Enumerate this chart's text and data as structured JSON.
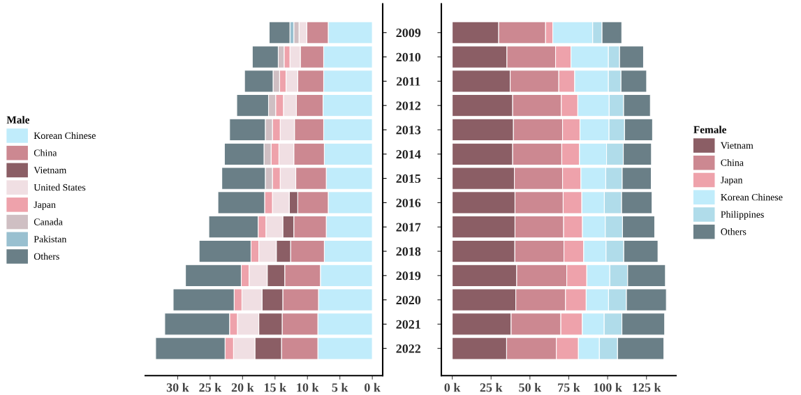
{
  "chart_data": [
    {
      "type": "bar",
      "orientation": "horizontal",
      "stacked": true,
      "legend": "left",
      "legend_title": "Male",
      "tick_labels": "x",
      "grid": false,
      "categories": [
        "2009",
        "2010",
        "2011",
        "2012",
        "2013",
        "2014",
        "2015",
        "2016",
        "2017",
        "2018",
        "2019",
        "2020",
        "2021",
        "2022"
      ],
      "xlim": [
        35,
        -1.6
      ],
      "xticks": [
        {
          "value": 0,
          "label": "0 k"
        },
        {
          "value": 5,
          "label": "5 k"
        },
        {
          "value": 10,
          "label": "10 k"
        },
        {
          "value": 15,
          "label": "15 k"
        },
        {
          "value": 20,
          "label": "20 k"
        },
        {
          "value": 25,
          "label": "25 k"
        },
        {
          "value": 30,
          "label": "30 k"
        }
      ],
      "series": [
        {
          "name": "Korean Chinese",
          "color": "#c0ecfb",
          "values": [
            6.8,
            7.5,
            7.5,
            7.6,
            7.5,
            7.4,
            7.1,
            6.8,
            7.1,
            7.4,
            8.0,
            8.3,
            8.4,
            8.4
          ]
        },
        {
          "name": "China",
          "color": "#cc8891",
          "values": [
            3.3,
            3.6,
            4.0,
            4.1,
            4.5,
            4.7,
            4.7,
            4.7,
            5.0,
            5.2,
            5.5,
            5.5,
            5.5,
            5.6
          ]
        },
        {
          "name": "Vietnam",
          "color": "#8b5e65",
          "values": [
            null,
            null,
            null,
            null,
            null,
            null,
            null,
            1.3,
            1.7,
            2.2,
            2.7,
            3.2,
            3.6,
            4.1
          ]
        },
        {
          "name": "United States",
          "color": "#f0dfe3",
          "values": [
            1.2,
            1.6,
            1.8,
            2.0,
            2.2,
            2.3,
            2.4,
            2.6,
            2.6,
            2.7,
            2.8,
            3.1,
            3.3,
            3.3
          ]
        },
        {
          "name": "Japan",
          "color": "#eea2ab",
          "values": [
            null,
            0.9,
            1.0,
            1.2,
            1.2,
            1.2,
            1.2,
            1.2,
            1.2,
            1.2,
            1.2,
            1.2,
            1.2,
            1.3
          ]
        },
        {
          "name": "Canada",
          "color": "#cfbfc3",
          "values": [
            0.8,
            0.9,
            1.0,
            1.1,
            1.1,
            1.1,
            1.1,
            null,
            null,
            null,
            null,
            null,
            null,
            null
          ]
        },
        {
          "name": "Pakistan",
          "color": "#99c0d0",
          "values": [
            0.6,
            null,
            null,
            null,
            null,
            null,
            null,
            null,
            null,
            null,
            null,
            null,
            null,
            null
          ]
        },
        {
          "name": "Others",
          "color": "#6a7f87",
          "values": [
            3.2,
            4.0,
            4.4,
            4.9,
            5.5,
            6.1,
            6.7,
            7.2,
            7.6,
            8.0,
            8.6,
            9.4,
            10.0,
            10.7
          ]
        }
      ]
    },
    {
      "type": "bar",
      "orientation": "horizontal",
      "stacked": true,
      "legend": "right",
      "legend_title": "Female",
      "grid": false,
      "categories": [
        "2009",
        "2010",
        "2011",
        "2012",
        "2013",
        "2014",
        "2015",
        "2016",
        "2017",
        "2018",
        "2019",
        "2020",
        "2021",
        "2022"
      ],
      "xlim": [
        -7,
        144
      ],
      "xticks": [
        {
          "value": 0,
          "label": "0 k"
        },
        {
          "value": 25,
          "label": "25 k"
        },
        {
          "value": 50,
          "label": "50 k"
        },
        {
          "value": 75,
          "label": "75 k"
        },
        {
          "value": 100,
          "label": "100 k"
        },
        {
          "value": 125,
          "label": "125 k"
        }
      ],
      "series": [
        {
          "name": "Vietnam",
          "color": "#8b5e65",
          "values": [
            29.9,
            35.2,
            37.3,
            38.9,
            39.4,
            38.9,
            40.0,
            40.4,
            40.4,
            40.3,
            41.5,
            40.9,
            37.9,
            35.0
          ]
        },
        {
          "name": "China",
          "color": "#cc8891",
          "values": [
            30.2,
            31.3,
            31.3,
            31.3,
            31.6,
            31.6,
            31.0,
            31.0,
            31.3,
            31.6,
            32.2,
            32.0,
            32.0,
            32.0
          ]
        },
        {
          "name": "Japan",
          "color": "#eea2ab",
          "values": [
            4.6,
            9.9,
            10.2,
            10.6,
            11.2,
            11.4,
            11.8,
            12.0,
            12.1,
            12.7,
            12.9,
            13.3,
            13.8,
            14.2
          ]
        },
        {
          "name": "Korean Chinese",
          "color": "#c0ecfb",
          "values": [
            25.7,
            24.1,
            21.7,
            20.2,
            18.7,
            17.4,
            16.0,
            14.5,
            14.7,
            14.4,
            14.8,
            14.4,
            14.1,
            13.5
          ]
        },
        {
          "name": "Philippines",
          "color": "#b0dcea",
          "values": [
            6.0,
            7.2,
            8.1,
            9.3,
            10.0,
            10.8,
            10.6,
            11.1,
            11.1,
            11.4,
            11.5,
            11.5,
            11.4,
            11.7
          ]
        },
        {
          "name": "Others",
          "color": "#6a7f87",
          "values": [
            12.7,
            15.4,
            16.5,
            17.2,
            18.0,
            18.1,
            18.7,
            19.6,
            20.7,
            22.0,
            24.3,
            25.7,
            27.5,
            29.8
          ]
        }
      ]
    }
  ]
}
